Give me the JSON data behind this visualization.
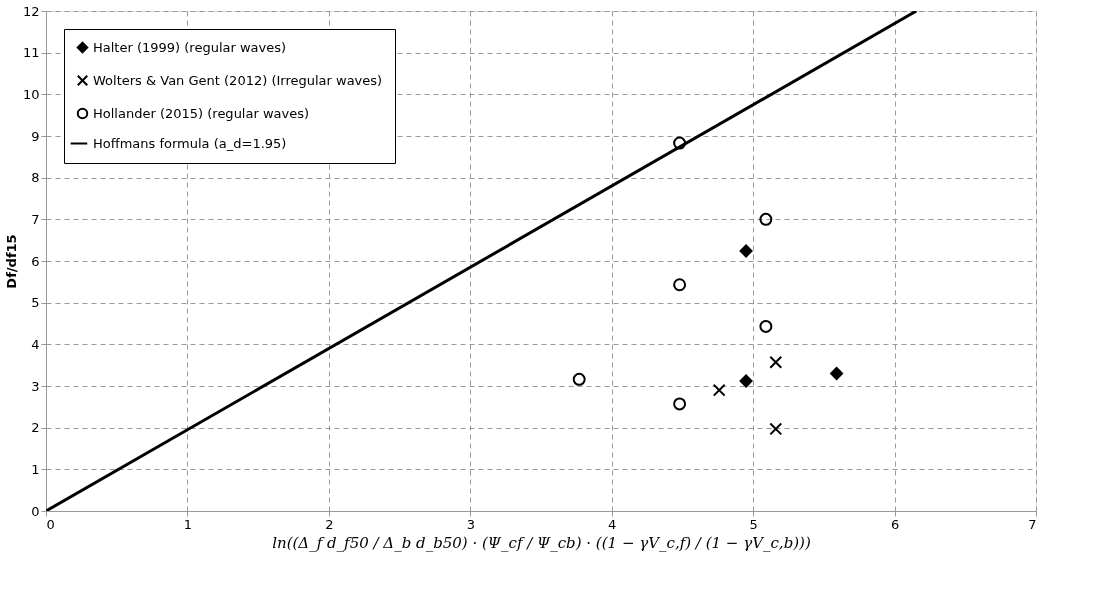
{
  "chart_data": {
    "type": "scatter",
    "xlabel": "ln((Δ_f d_f50 / Δ_b d_b50) · (Ψ_cf / Ψ_cb) · ((1 − γV_c,f) / (1 − γV_c,b)))",
    "ylabel": "Df/df15",
    "series": [
      {
        "name": "Halter (1999) (regular waves)",
        "color": "#000000",
        "marker": "diamond",
        "x": [
          4.95,
          4.95,
          5.59
        ],
        "values": [
          6.24,
          3.12,
          3.3
        ]
      },
      {
        "name": "Wolters & Van Gent (2012) (Irregular waves)",
        "color": "#000000",
        "marker": "cross",
        "x": [
          4.76,
          5.16,
          5.16
        ],
        "values": [
          2.9,
          3.57,
          1.97
        ]
      },
      {
        "name": "Hollander (2015) (regular waves)",
        "color": "#000000",
        "marker": "circle",
        "x": [
          4.48,
          5.09,
          4.48,
          5.09,
          3.77,
          4.48
        ],
        "values": [
          8.83,
          7.0,
          5.43,
          4.43,
          3.16,
          2.57
        ]
      },
      {
        "name": "Hoffmans formula (a_d=1.95)",
        "color": "#000000",
        "type": "line",
        "marker": "none",
        "line_style": "solid",
        "x": [
          0,
          6.154
        ],
        "values": [
          0,
          12
        ]
      }
    ],
    "xlim": [
      0,
      7
    ],
    "xticks": [
      0,
      1,
      2,
      3,
      4,
      5,
      6,
      7
    ],
    "ylim": [
      0,
      12
    ],
    "yticks": [
      0,
      1,
      2,
      3,
      4,
      5,
      6,
      7,
      8,
      9,
      10,
      11,
      12
    ],
    "grid": true,
    "legend": "top left"
  }
}
